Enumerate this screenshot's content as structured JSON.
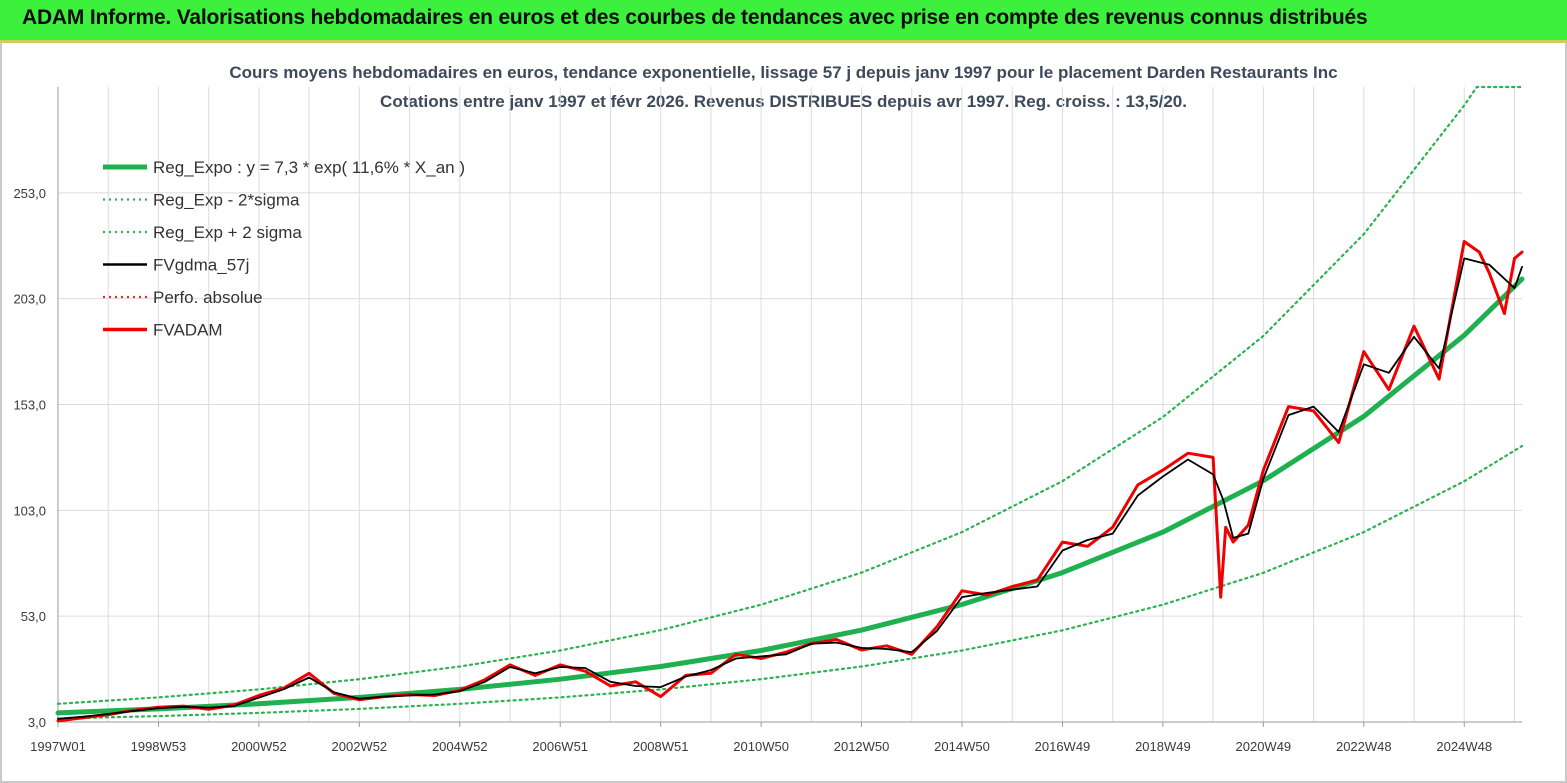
{
  "header": {
    "title": "ADAM Informe. Valorisations hebdomadaires en euros et des courbes de tendances avec prise en compte des revenus connus distribués"
  },
  "chart_data": {
    "type": "line",
    "title": "Cours moyens hebdomadaires en euros, tendance exponentielle, lissage 57 j depuis janv 1997 pour le placement Darden Restaurants Inc",
    "subtitle": "Cotations entre janv 1997 et févr 2026. Revenus DISTRIBUES depuis avr 1997. Reg. croiss. : 13,5/20.",
    "xlabel": "",
    "ylabel": "",
    "x_range": [
      1997.0,
      2026.15
    ],
    "ylim": [
      3.0,
      303.0
    ],
    "y_ticks": [
      "3,0",
      "53,0",
      "103,0",
      "153,0",
      "203,0",
      "253,0"
    ],
    "y_tick_values": [
      3,
      53,
      103,
      153,
      203,
      253
    ],
    "x_ticks": [
      "1997W01",
      "1998W53",
      "2000W52",
      "2002W52",
      "2004W52",
      "2006W51",
      "2008W51",
      "2010W50",
      "2012W50",
      "2014W50",
      "2016W49",
      "2018W49",
      "2020W49",
      "2022W48",
      "2024W48"
    ],
    "x_tick_values": [
      1997.0,
      1999.0,
      2001.0,
      2003.0,
      2005.0,
      2007.0,
      2009.0,
      2011.0,
      2013.0,
      2015.0,
      2017.0,
      2019.0,
      2021.0,
      2023.0,
      2025.0
    ],
    "grid": true,
    "legend_position": "top-left",
    "series": [
      {
        "name": "Reg_Expo : y = 7,3 * exp( 11,6% *  X_an )",
        "color": "#1fb04f",
        "style": "solid-thick",
        "x": [
          1997,
          1999,
          2001,
          2003,
          2005,
          2007,
          2009,
          2011,
          2013,
          2015,
          2017,
          2019,
          2021,
          2023,
          2025,
          2026.15
        ],
        "y": [
          7.3,
          9.2,
          11.6,
          14.6,
          18.4,
          23.2,
          29.2,
          36.8,
          46.4,
          58.5,
          73.6,
          92.7,
          117.0,
          147.4,
          185.7,
          212.3
        ]
      },
      {
        "name": "Reg_Exp - 2*sigma",
        "color": "#2bb34f",
        "style": "dotted",
        "x": [
          1997,
          1999,
          2001,
          2003,
          2005,
          2007,
          2009,
          2011,
          2013,
          2015,
          2017,
          2019,
          2021,
          2023,
          2025,
          2026.15
        ],
        "y": [
          4.6,
          5.8,
          7.3,
          9.2,
          11.6,
          14.6,
          18.4,
          23.2,
          29.2,
          36.8,
          46.3,
          58.4,
          73.5,
          92.7,
          116.7,
          133.4
        ]
      },
      {
        "name": "Reg_Exp + 2 sigma",
        "color": "#2bb34f",
        "style": "dotted",
        "x": [
          1997,
          1999,
          2001,
          2003,
          2005,
          2007,
          2009,
          2011,
          2013,
          2015,
          2017,
          2019,
          2021,
          2023,
          2025,
          2025.25,
          2026.15
        ],
        "y": [
          11.6,
          14.6,
          18.4,
          23.2,
          29.2,
          36.8,
          46.4,
          58.4,
          73.6,
          92.7,
          116.8,
          147.1,
          185.4,
          233.5,
          294.3,
          303.0,
          303.0
        ]
      },
      {
        "name": "FVgdma_57j",
        "color": "#000000",
        "style": "solid",
        "x": [
          1997,
          1997.5,
          1998,
          1998.5,
          1999,
          1999.5,
          2000,
          2000.5,
          2001,
          2001.5,
          2002,
          2002.5,
          2003,
          2003.5,
          2004,
          2004.5,
          2005,
          2005.5,
          2006,
          2006.5,
          2007,
          2007.5,
          2008,
          2008.5,
          2009,
          2009.5,
          2010,
          2010.5,
          2011,
          2011.5,
          2012,
          2012.5,
          2013,
          2013.5,
          2014,
          2014.5,
          2015,
          2015.5,
          2016,
          2016.5,
          2017,
          2017.5,
          2018,
          2018.5,
          2019,
          2019.5,
          2020,
          2020.2,
          2020.4,
          2020.7,
          2021,
          2021.5,
          2022,
          2022.5,
          2023,
          2023.5,
          2024,
          2024.5,
          2025,
          2025.5,
          2026,
          2026.15
        ],
        "y": [
          4.5,
          5.5,
          6.8,
          8.2,
          9.5,
          10.2,
          9.8,
          10.5,
          14.5,
          18.5,
          24.0,
          17.0,
          14.0,
          15.0,
          15.5,
          16.0,
          17.5,
          22.0,
          29.0,
          26.0,
          29.0,
          28.5,
          22.0,
          20.0,
          19.5,
          24.5,
          27.5,
          33.0,
          34.0,
          35.0,
          40.0,
          40.5,
          38.0,
          37.5,
          36.0,
          46.0,
          62.0,
          64.0,
          65.5,
          67.0,
          84.0,
          89.0,
          92.0,
          110.0,
          119.0,
          127.0,
          120.0,
          108.0,
          90.0,
          92.0,
          118.0,
          148.0,
          152.0,
          140.0,
          172.0,
          168.0,
          185.0,
          170.0,
          222.0,
          219.0,
          208.0,
          218.0
        ]
      },
      {
        "name": "Perfo. absolue",
        "color": "#e0322d",
        "style": "dotted",
        "x": [],
        "y": []
      },
      {
        "name": "FVADAM",
        "color": "#f00000",
        "style": "solid-thick",
        "x": [
          1997,
          1997.5,
          1998,
          1998.5,
          1999,
          1999.5,
          2000,
          2000.5,
          2001,
          2001.5,
          2002,
          2002.5,
          2003,
          2003.5,
          2004,
          2004.5,
          2005,
          2005.5,
          2006,
          2006.5,
          2007,
          2007.5,
          2008,
          2008.5,
          2009,
          2009.5,
          2010,
          2010.5,
          2011,
          2011.5,
          2012,
          2012.5,
          2013,
          2013.5,
          2014,
          2014.5,
          2015,
          2015.5,
          2016,
          2016.5,
          2017,
          2017.5,
          2018,
          2018.5,
          2019,
          2019.5,
          2020,
          2020.15,
          2020.25,
          2020.4,
          2020.7,
          2021,
          2021.5,
          2022,
          2022.5,
          2023,
          2023.5,
          2024,
          2024.5,
          2025,
          2025.3,
          2025.5,
          2025.8,
          2026,
          2026.15
        ],
        "y": [
          3.5,
          5.0,
          6.5,
          8.5,
          10.0,
          10.5,
          9.0,
          11.0,
          15.5,
          19.0,
          26.0,
          16.5,
          13.5,
          15.0,
          16.0,
          15.5,
          18.0,
          23.0,
          30.0,
          25.0,
          30.0,
          27.0,
          20.0,
          22.0,
          15.0,
          25.0,
          26.0,
          35.0,
          33.0,
          36.0,
          40.0,
          42.0,
          37.0,
          39.0,
          35.0,
          48.0,
          65.0,
          63.0,
          67.0,
          70.0,
          88.0,
          86.0,
          95.0,
          115.0,
          122.0,
          130.0,
          128.0,
          62.0,
          95.0,
          88.0,
          96.0,
          122.0,
          152.0,
          150.0,
          135.0,
          178.0,
          160.0,
          190.0,
          165.0,
          230.0,
          225.0,
          215.0,
          196.0,
          222.0,
          225.0
        ]
      }
    ]
  }
}
